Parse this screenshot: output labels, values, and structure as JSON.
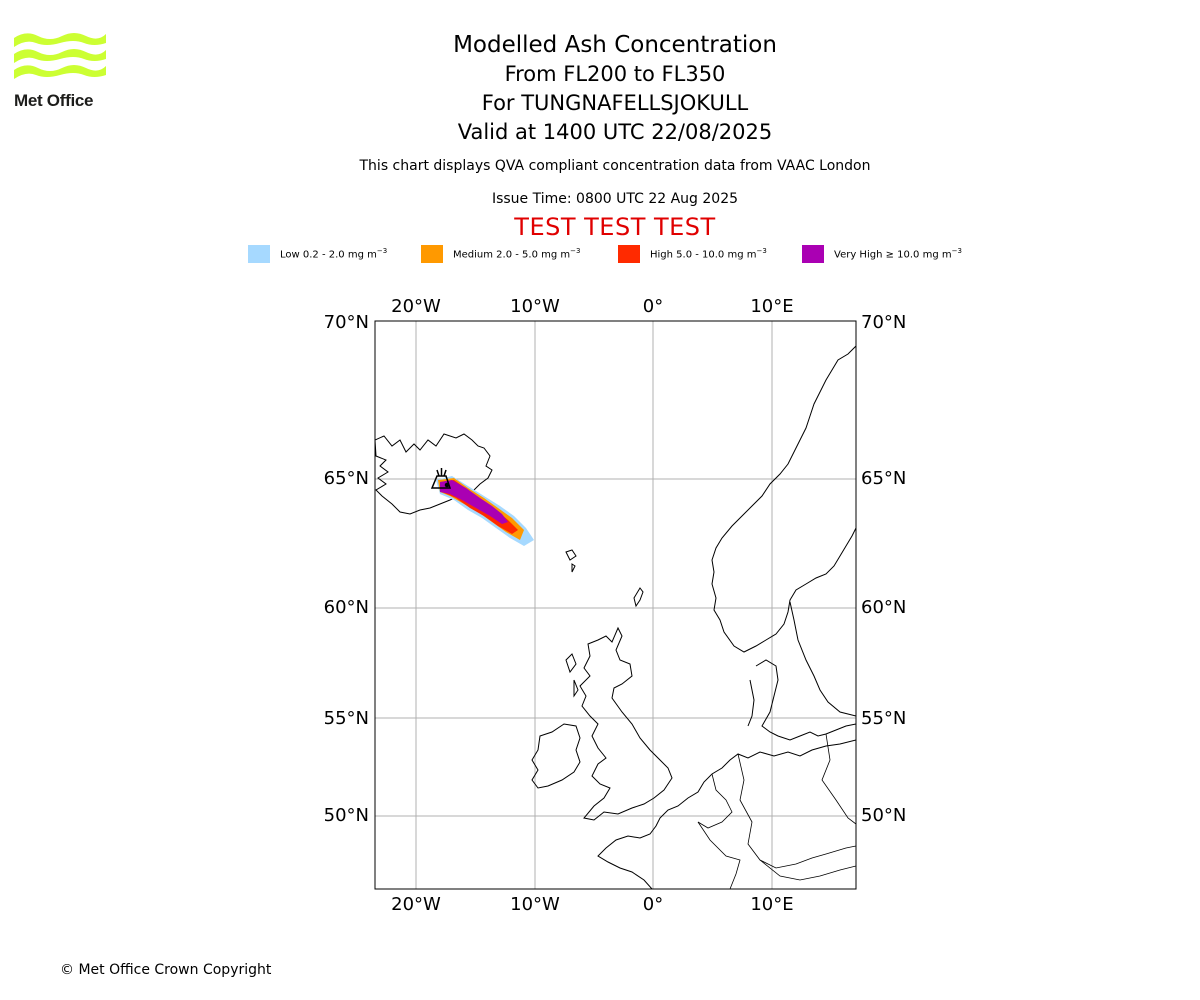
{
  "logo": {
    "text": "Met Office",
    "colors": {
      "waves": "#ccff33",
      "text": "#1d1d1b"
    }
  },
  "header": {
    "title": "Modelled Ash Concentration",
    "flight_levels": "From FL200 to FL350",
    "volcano": "For TUNGNAFELLSJOKULL",
    "valid": "Valid at 1400 UTC 22/08/2025",
    "note": "This chart displays QVA compliant concentration data from VAAC London",
    "issue": "Issue Time: 0800 UTC 22 Aug 2025",
    "test_banner": "TEST TEST TEST"
  },
  "legend": [
    {
      "label": "Low 0.2 - 2.0 mg m",
      "color": "#a6d9ff"
    },
    {
      "label": "Medium 2.0 - 5.0 mg m",
      "color": "#ff9900"
    },
    {
      "label": "High 5.0 - 10.0 mg m",
      "color": "#ff2a00"
    },
    {
      "label": "Very High ≥ 10.0 mg m",
      "color": "#aa00b3"
    }
  ],
  "legend_exponent": "−3",
  "map": {
    "lon_labels": [
      "20°W",
      "10°W",
      "0°",
      "10°E"
    ],
    "lat_labels": [
      "70°N",
      "65°N",
      "60°N",
      "55°N",
      "50°N"
    ],
    "extent": {
      "lon": [
        -23.5,
        17
      ],
      "lat": [
        47,
        70
      ]
    },
    "grid_lons": [
      -20,
      -10,
      0,
      10
    ],
    "grid_lats": [
      70,
      65,
      60,
      55,
      50
    ],
    "volcano_position": {
      "lon": -17.9,
      "lat": 64.75
    }
  },
  "footer": {
    "copyright": "© Met Office Crown Copyright"
  }
}
